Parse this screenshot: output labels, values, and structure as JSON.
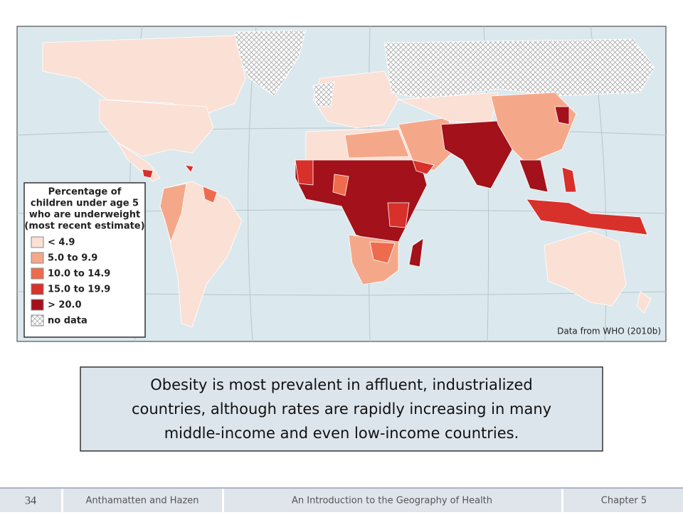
{
  "map": {
    "legend": {
      "title_lines": [
        "Percentage of",
        "children under age 5",
        "who are underweight",
        "(most recent estimate)"
      ],
      "items": [
        "< 4.9",
        "5.0 to 9.9",
        "10.0 to 14.9",
        "15.0 to 19.9",
        "> 20.0",
        "no data"
      ]
    },
    "source": "Data from WHO (2010b)"
  },
  "callout": {
    "lines": [
      "Obesity is most prevalent in affluent, industrialized",
      "countries, although rates are rapidly increasing in many",
      "middle-income and even low-income countries."
    ]
  },
  "footer": {
    "page": "34",
    "authors": "Anthamatten and Hazen",
    "book": "An Introduction to the Geography of Health",
    "chapter": "Chapter 5"
  }
}
